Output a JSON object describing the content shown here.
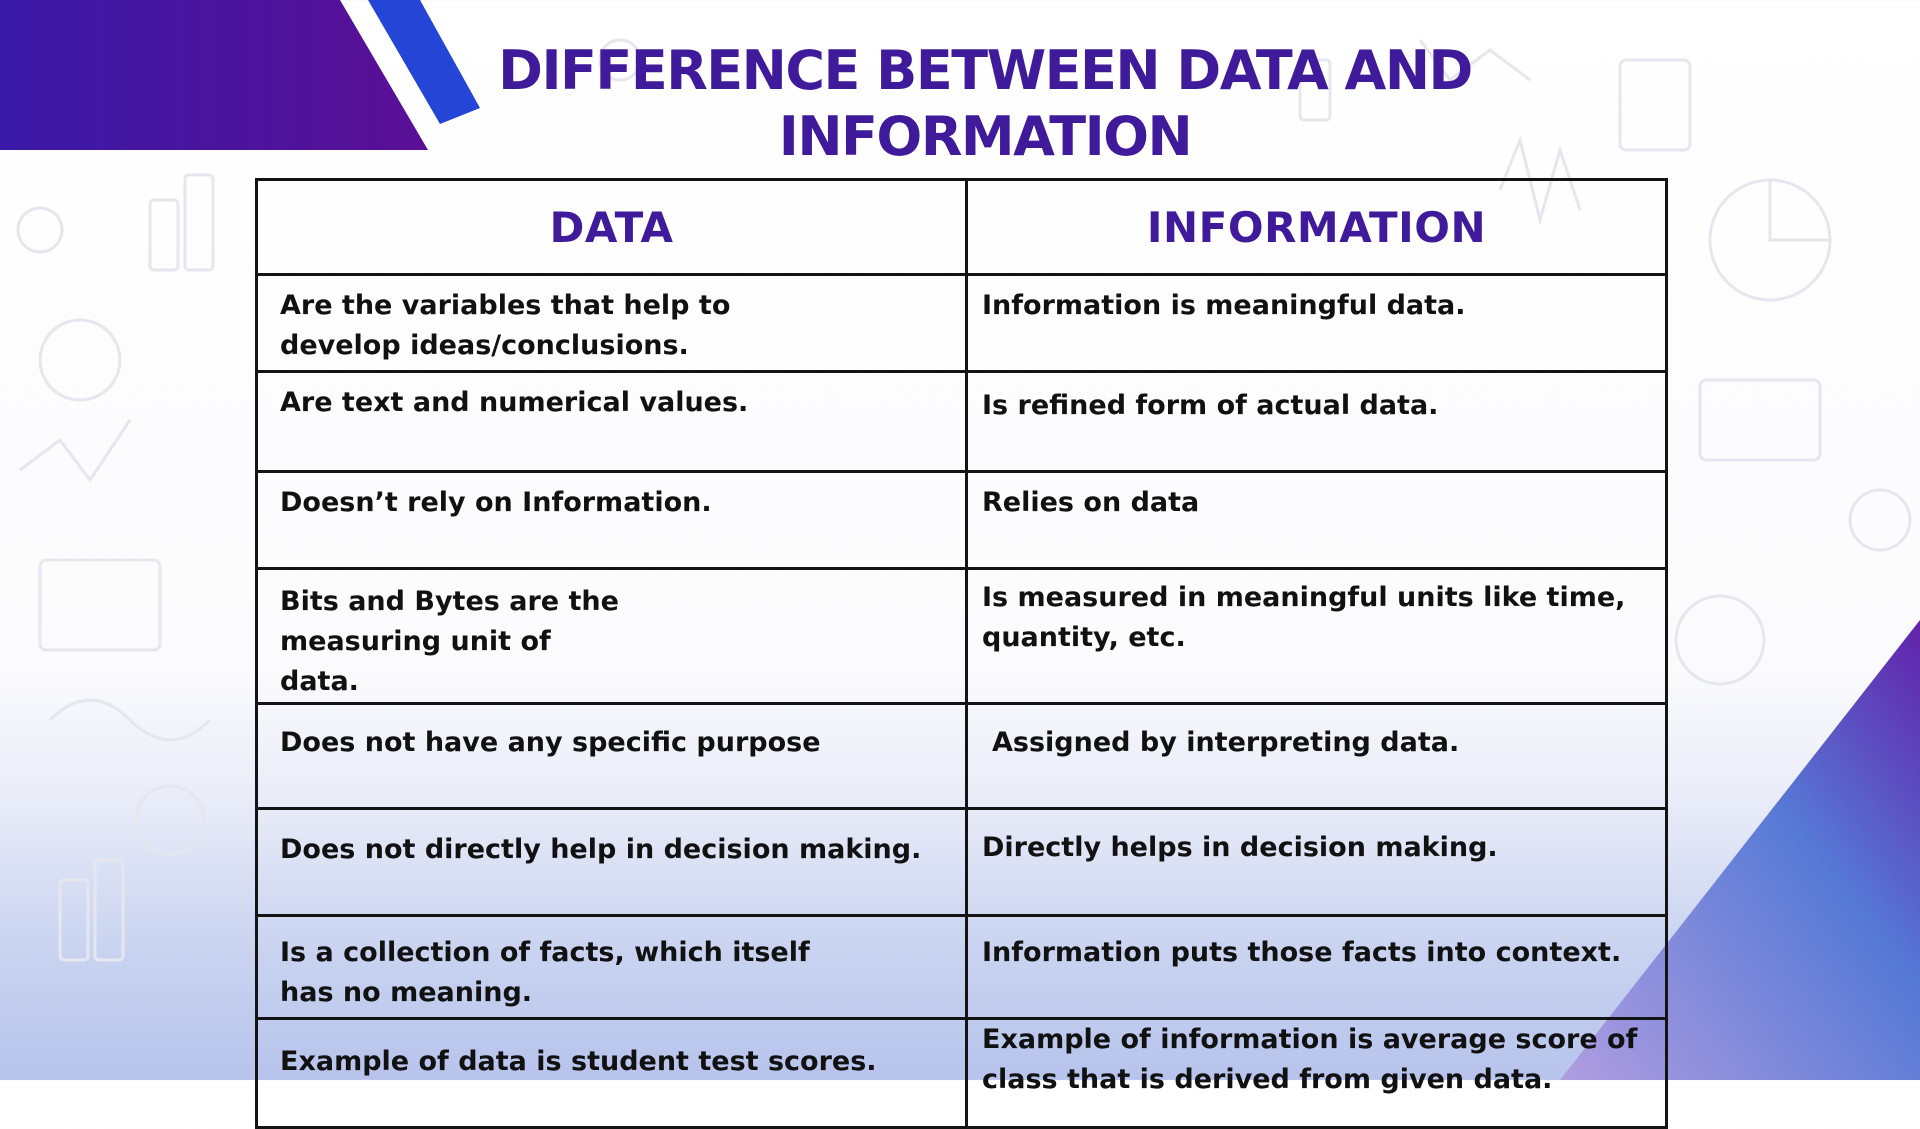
{
  "title": "DIFFERENCE BETWEEN DATA AND INFORMATION",
  "headers": {
    "left": "DATA",
    "right": "INFORMATION"
  },
  "rows": [
    {
      "data": "Are the variables that help to develop ideas/conclusions.",
      "information": "Information is meaningful data."
    },
    {
      "data": "Are text and numerical values.",
      "information": "Is refined form of actual data."
    },
    {
      "data": "Doesn’t rely on Information.",
      "information": "Relies on data"
    },
    {
      "data": "Bits and Bytes are the measuring unit of data.",
      "information": "Is measured in meaningful units like time, quantity, etc."
    },
    {
      "data": "Does not have any specific purpose",
      "information": "Assigned by interpreting data."
    },
    {
      "data": "Does not directly help in decision making.",
      "information": "Directly helps in decision making."
    },
    {
      "data": "Is a collection of facts, which itself has no meaning.",
      "information": "Information puts those facts into context."
    },
    {
      "data": "Example of data is student test scores.",
      "information": "Example of information is average score of class that is derived from given data."
    }
  ],
  "colors": {
    "title": "#3f1b9b",
    "header_text": "#3f1b9b",
    "body_text": "#111111",
    "border": "#141414",
    "accent_purple": "#4b1496",
    "accent_blue": "#1f3ec9"
  }
}
